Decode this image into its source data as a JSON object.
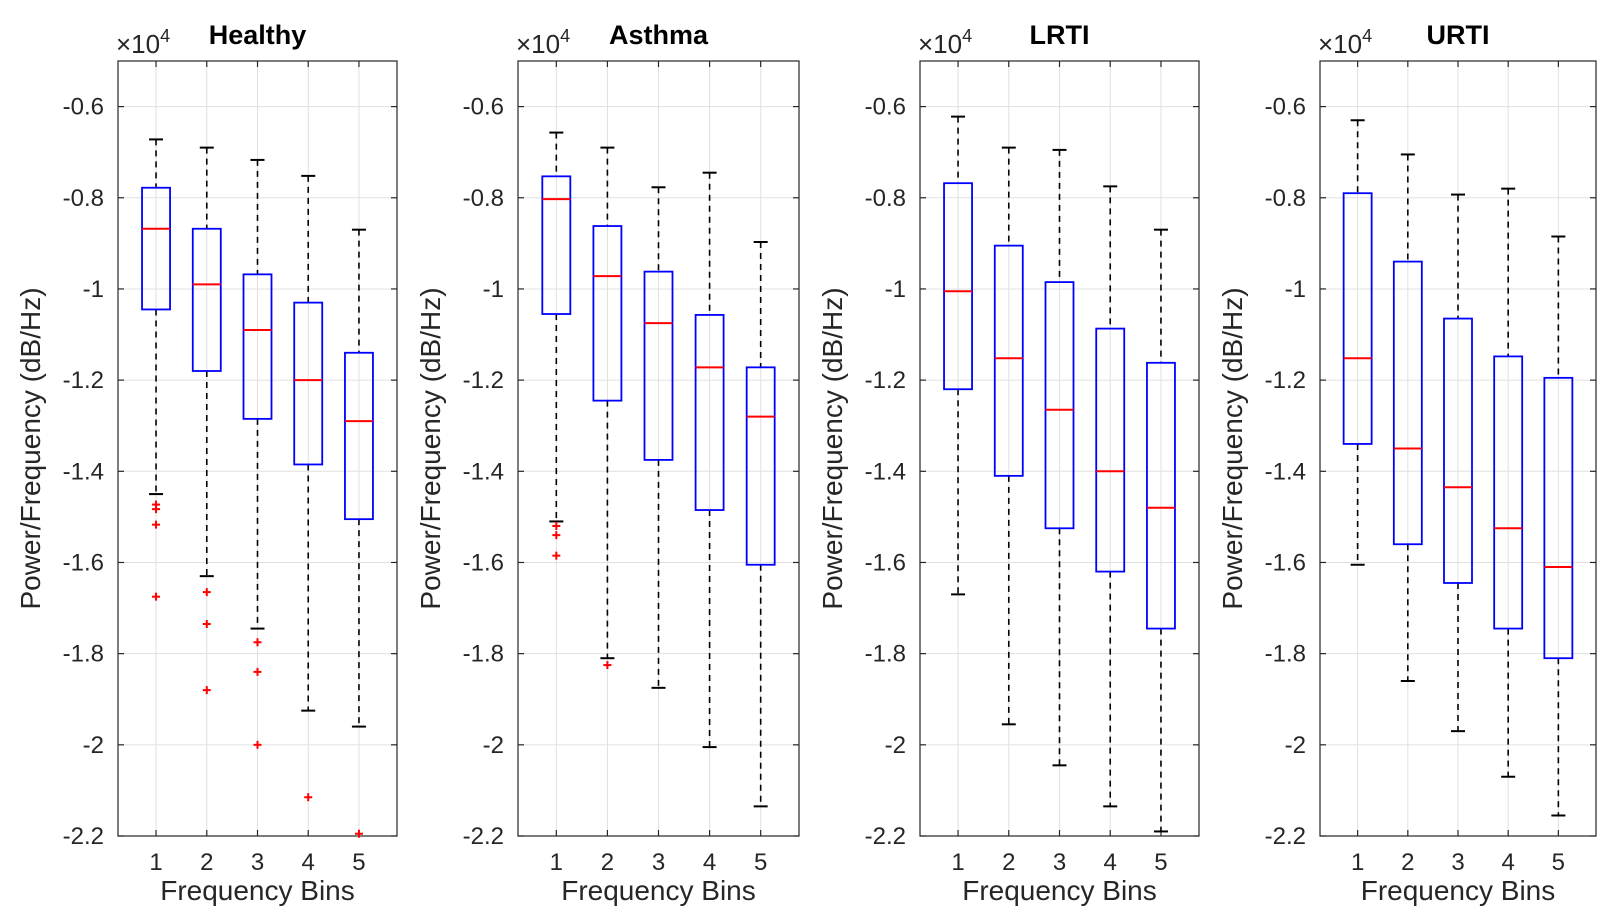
{
  "chart_data": [
    {
      "type": "boxplot",
      "title": "Healthy",
      "xlabel": "Frequency Bins",
      "ylabel": "Power/Frequency (dB/Hz)",
      "y_multiplier": "×10",
      "y_multiplier_exp": "4",
      "ylim": [
        -2.2,
        -0.5
      ],
      "yticks": [
        -2.2,
        -2.0,
        -1.8,
        -1.6,
        -1.4,
        -1.2,
        -1.0,
        -0.8,
        -0.6
      ],
      "ytick_labels": [
        "-2.2",
        "-2",
        "-1.8",
        "-1.6",
        "-1.4",
        "-1.2",
        "-1",
        "-0.8",
        "-0.6"
      ],
      "categories": [
        "1",
        "2",
        "3",
        "4",
        "5"
      ],
      "boxes": [
        {
          "whisker_low": -1.45,
          "q1": -1.045,
          "median": -0.868,
          "q3": -0.778,
          "whisker_high": -0.672,
          "outliers": [
            -1.473,
            -1.483,
            -1.517,
            -1.675
          ]
        },
        {
          "whisker_low": -1.63,
          "q1": -1.18,
          "median": -0.99,
          "q3": -0.868,
          "whisker_high": -0.69,
          "outliers": [
            -1.665,
            -1.735,
            -1.88
          ]
        },
        {
          "whisker_low": -1.745,
          "q1": -1.285,
          "median": -1.09,
          "q3": -0.968,
          "whisker_high": -0.717,
          "outliers": [
            -1.775,
            -1.84,
            -2.0
          ]
        },
        {
          "whisker_low": -1.925,
          "q1": -1.385,
          "median": -1.2,
          "q3": -1.03,
          "whisker_high": -0.752,
          "outliers": [
            -2.115
          ]
        },
        {
          "whisker_low": -1.96,
          "q1": -1.505,
          "median": -1.29,
          "q3": -1.14,
          "whisker_high": -0.87,
          "outliers": [
            -2.195
          ]
        }
      ]
    },
    {
      "type": "boxplot",
      "title": "Asthma",
      "xlabel": "Frequency Bins",
      "ylabel": "Power/Frequency (dB/Hz)",
      "y_multiplier": "×10",
      "y_multiplier_exp": "4",
      "ylim": [
        -2.2,
        -0.5
      ],
      "yticks": [
        -2.2,
        -2.0,
        -1.8,
        -1.6,
        -1.4,
        -1.2,
        -1.0,
        -0.8,
        -0.6
      ],
      "ytick_labels": [
        "-2.2",
        "-2",
        "-1.8",
        "-1.6",
        "-1.4",
        "-1.2",
        "-1",
        "-0.8",
        "-0.6"
      ],
      "categories": [
        "1",
        "2",
        "3",
        "4",
        "5"
      ],
      "boxes": [
        {
          "whisker_low": -1.51,
          "q1": -1.055,
          "median": -0.803,
          "q3": -0.753,
          "whisker_high": -0.657,
          "outliers": [
            -1.52,
            -1.54,
            -1.585
          ]
        },
        {
          "whisker_low": -1.81,
          "q1": -1.245,
          "median": -0.972,
          "q3": -0.862,
          "whisker_high": -0.69,
          "outliers": [
            -1.825
          ]
        },
        {
          "whisker_low": -1.875,
          "q1": -1.375,
          "median": -1.075,
          "q3": -0.962,
          "whisker_high": -0.777,
          "outliers": []
        },
        {
          "whisker_low": -2.005,
          "q1": -1.485,
          "median": -1.172,
          "q3": -1.057,
          "whisker_high": -0.745,
          "outliers": []
        },
        {
          "whisker_low": -2.135,
          "q1": -1.605,
          "median": -1.28,
          "q3": -1.172,
          "whisker_high": -0.897,
          "outliers": []
        }
      ]
    },
    {
      "type": "boxplot",
      "title": "LRTI",
      "xlabel": "Frequency Bins",
      "ylabel": "Power/Frequency (dB/Hz)",
      "y_multiplier": "×10",
      "y_multiplier_exp": "4",
      "ylim": [
        -2.2,
        -0.5
      ],
      "yticks": [
        -2.2,
        -2.0,
        -1.8,
        -1.6,
        -1.4,
        -1.2,
        -1.0,
        -0.8,
        -0.6
      ],
      "ytick_labels": [
        "-2.2",
        "-2",
        "-1.8",
        "-1.6",
        "-1.4",
        "-1.2",
        "-1",
        "-0.8",
        "-0.6"
      ],
      "categories": [
        "1",
        "2",
        "3",
        "4",
        "5"
      ],
      "boxes": [
        {
          "whisker_low": -1.67,
          "q1": -1.22,
          "median": -1.005,
          "q3": -0.768,
          "whisker_high": -0.622,
          "outliers": []
        },
        {
          "whisker_low": -1.955,
          "q1": -1.41,
          "median": -1.152,
          "q3": -0.905,
          "whisker_high": -0.69,
          "outliers": []
        },
        {
          "whisker_low": -2.045,
          "q1": -1.525,
          "median": -1.265,
          "q3": -0.985,
          "whisker_high": -0.695,
          "outliers": []
        },
        {
          "whisker_low": -2.135,
          "q1": -1.62,
          "median": -1.4,
          "q3": -1.087,
          "whisker_high": -0.775,
          "outliers": []
        },
        {
          "whisker_low": -2.19,
          "q1": -1.745,
          "median": -1.48,
          "q3": -1.162,
          "whisker_high": -0.87,
          "outliers": []
        }
      ]
    },
    {
      "type": "boxplot",
      "title": "URTI",
      "xlabel": "Frequency Bins",
      "ylabel": "Power/Frequency (dB/Hz)",
      "y_multiplier": "×10",
      "y_multiplier_exp": "4",
      "ylim": [
        -2.2,
        -0.5
      ],
      "yticks": [
        -2.2,
        -2.0,
        -1.8,
        -1.6,
        -1.4,
        -1.2,
        -1.0,
        -0.8,
        -0.6
      ],
      "ytick_labels": [
        "-2.2",
        "-2",
        "-1.8",
        "-1.6",
        "-1.4",
        "-1.2",
        "-1",
        "-0.8",
        "-0.6"
      ],
      "categories": [
        "1",
        "2",
        "3",
        "4",
        "5"
      ],
      "boxes": [
        {
          "whisker_low": -1.605,
          "q1": -1.34,
          "median": -1.152,
          "q3": -0.79,
          "whisker_high": -0.63,
          "outliers": []
        },
        {
          "whisker_low": -1.86,
          "q1": -1.56,
          "median": -1.35,
          "q3": -0.94,
          "whisker_high": -0.705,
          "outliers": []
        },
        {
          "whisker_low": -1.97,
          "q1": -1.645,
          "median": -1.435,
          "q3": -1.065,
          "whisker_high": -0.793,
          "outliers": []
        },
        {
          "whisker_low": -2.07,
          "q1": -1.745,
          "median": -1.525,
          "q3": -1.148,
          "whisker_high": -0.78,
          "outliers": []
        },
        {
          "whisker_low": -2.155,
          "q1": -1.81,
          "median": -1.61,
          "q3": -1.195,
          "whisker_high": -0.885,
          "outliers": []
        }
      ]
    }
  ],
  "colors": {
    "box": "#0000ff",
    "median": "#ff0000",
    "whisker": "#000000",
    "outlier": "#ff0000",
    "grid": "#e0e0e0",
    "axis": "#262626"
  }
}
